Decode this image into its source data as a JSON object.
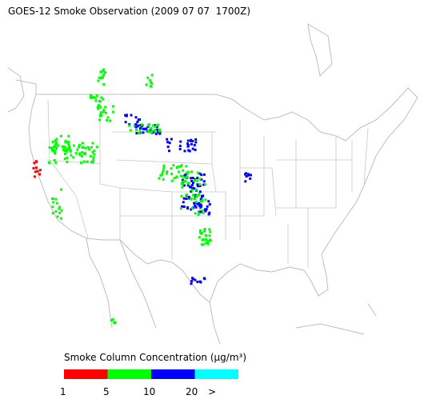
{
  "title": "GOES-12 Smoke Observation (2009 07 07  1700Z)",
  "legend": {
    "title": "Smoke Column Concentration (μg/m³)",
    "colors": [
      "#ff0000",
      "#00ff00",
      "#0000ff",
      "#00ffff"
    ],
    "ticks": [
      "1",
      "5",
      "10",
      "20",
      ">"
    ]
  }
}
